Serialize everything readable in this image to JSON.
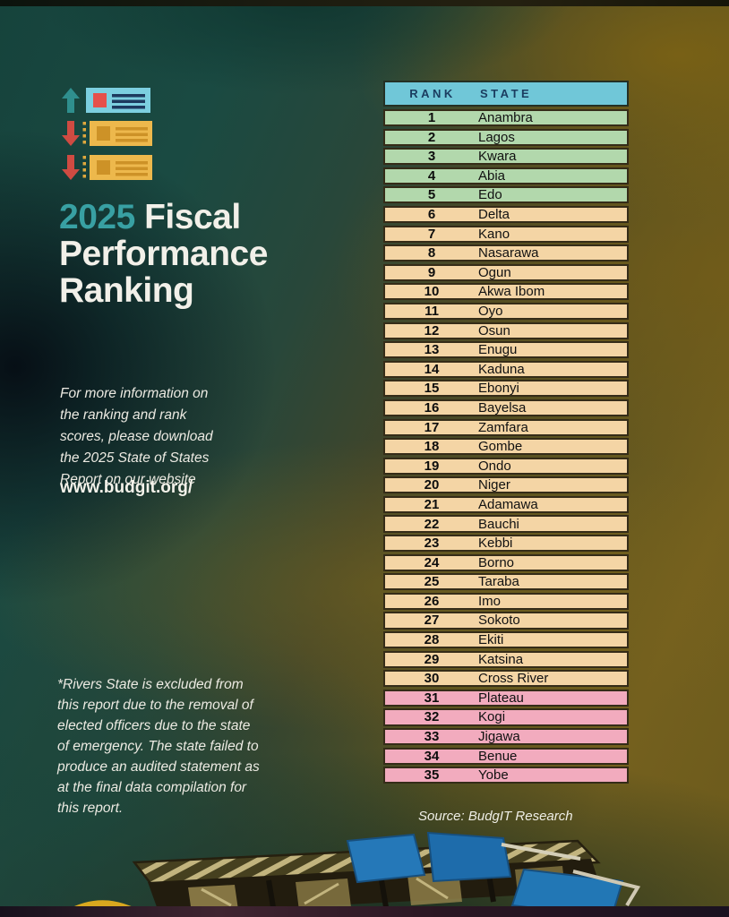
{
  "colors": {
    "accent_teal": "#38a0a3",
    "header_bg": "#70c7d8",
    "header_text": "#1b3d60",
    "tier_green": "#b2d8ac",
    "tier_tan": "#f4d5a5",
    "tier_pink": "#f2abbe",
    "row_border": "#352c18",
    "text_light": "#efeee6"
  },
  "hero": {
    "title_year": "2025",
    "title_after_year": " Fiscal",
    "title_line2": "Performance",
    "title_line3": "Ranking"
  },
  "icons": {
    "ranking_list_icon": "three stacked list cards with up/down trend arrows"
  },
  "info_text": "For more information on\nthe ranking and rank\nscores, please download\nthe 2025 State of States\nReport on our website",
  "website": "www.budgit.org/",
  "footnote": "*Rivers State is excluded from\nthis report due to the removal of\nelected  officers due to the state\nof emergency. The state failed to\nproduce an audited statement as\nat the final data compilation for\nthis report.",
  "source": "Source: BudgIT Research",
  "table": {
    "headers": {
      "rank": "RANK",
      "state": "STATE"
    }
  },
  "chart_data": {
    "type": "table",
    "title": "2025 Fiscal Performance Ranking",
    "columns": [
      "Rank",
      "State"
    ],
    "rows": [
      [
        1,
        "Anambra"
      ],
      [
        2,
        "Lagos"
      ],
      [
        3,
        "Kwara"
      ],
      [
        4,
        "Abia"
      ],
      [
        5,
        "Edo"
      ],
      [
        6,
        "Delta"
      ],
      [
        7,
        "Kano"
      ],
      [
        8,
        "Nasarawa"
      ],
      [
        9,
        "Ogun"
      ],
      [
        10,
        "Akwa Ibom"
      ],
      [
        11,
        "Oyo"
      ],
      [
        12,
        "Osun"
      ],
      [
        13,
        "Enugu"
      ],
      [
        14,
        "Kaduna"
      ],
      [
        15,
        "Ebonyi"
      ],
      [
        16,
        "Bayelsa"
      ],
      [
        17,
        "Zamfara"
      ],
      [
        18,
        "Gombe"
      ],
      [
        19,
        "Ondo"
      ],
      [
        20,
        "Niger"
      ],
      [
        21,
        "Adamawa"
      ],
      [
        22,
        "Bauchi"
      ],
      [
        23,
        "Kebbi"
      ],
      [
        24,
        "Borno"
      ],
      [
        25,
        "Taraba"
      ],
      [
        26,
        "Imo"
      ],
      [
        27,
        "Sokoto"
      ],
      [
        28,
        "Ekiti"
      ],
      [
        29,
        "Katsina"
      ],
      [
        30,
        "Cross River"
      ],
      [
        31,
        "Plateau"
      ],
      [
        32,
        "Kogi"
      ],
      [
        33,
        "Jigawa"
      ],
      [
        34,
        "Benue"
      ],
      [
        35,
        "Yobe"
      ]
    ],
    "tiers": {
      "green": [
        1,
        5
      ],
      "tan": [
        6,
        30
      ],
      "pink": [
        31,
        35
      ]
    },
    "source": "Source: BudgIT Research"
  }
}
